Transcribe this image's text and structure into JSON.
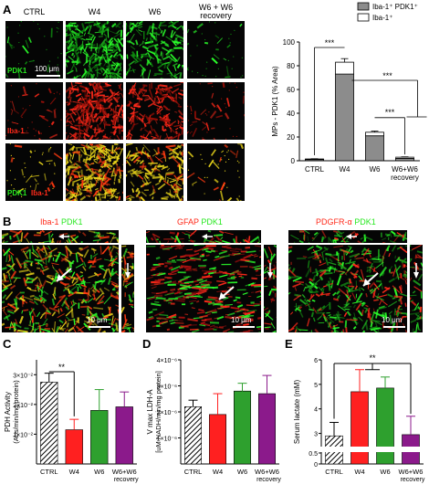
{
  "panels": {
    "A": {
      "letter": "A",
      "columns": [
        "CTRL",
        "W4",
        "W6",
        "W6 + W6"
      ],
      "column_sub": "recovery",
      "row_labels": [
        {
          "green": "PDK1",
          "red": ""
        },
        {
          "green": "",
          "red": "Iba-1"
        },
        {
          "green": "PDK1",
          "red": "Iba-1"
        }
      ],
      "scale_bar": "100 μm",
      "tile_intensity": [
        [
          0.05,
          0.9,
          0.55,
          0.06
        ],
        [
          0.08,
          0.95,
          0.6,
          0.1
        ],
        [
          0.07,
          1.0,
          0.6,
          0.08
        ]
      ]
    },
    "B": {
      "letter": "B",
      "labels": [
        {
          "red": "Iba-1",
          "green": "PDK1"
        },
        {
          "red": "GFAP",
          "green": "PDK1"
        },
        {
          "red": "PDGFR-α",
          "green": "PDK1"
        }
      ],
      "scale_bars": [
        "10 μm",
        "10 μm",
        "10 μm"
      ]
    },
    "C": {
      "letter": "C"
    },
    "D": {
      "letter": "D"
    },
    "E": {
      "letter": "E"
    }
  },
  "chart_data": [
    {
      "id": "A",
      "type": "bar",
      "stacked": true,
      "categories": [
        "CTRL",
        "W4",
        "W6",
        "W6+W6"
      ],
      "category_sub": [
        "",
        "",
        "",
        "recovery"
      ],
      "series": [
        {
          "name": "Iba-1⁺ PDK1⁺",
          "values": [
            1,
            73,
            21,
            2
          ],
          "errors": [
            0.3,
            2,
            2,
            0.4
          ],
          "color": "#8c8c8c"
        },
        {
          "name": "Iba-1⁺",
          "values": [
            0.5,
            10,
            3,
            1
          ],
          "errors": [
            0.2,
            3,
            1,
            0.3
          ],
          "color": "#ffffff"
        }
      ],
      "xlabel": "",
      "ylabel": "MPs - PDK1 (% Area)",
      "ylim": [
        0,
        100
      ],
      "yticks": [
        0,
        20,
        40,
        60,
        80,
        100
      ],
      "significance": [
        "***",
        "***",
        "***"
      ],
      "legend": "top-right"
    },
    {
      "id": "C",
      "type": "bar",
      "categories": [
        "CTRL",
        "W4",
        "W6",
        "W6+W6"
      ],
      "category_sub": [
        "",
        "",
        "",
        "recovery"
      ],
      "values": [
        0.0275,
        0.0115,
        0.018,
        0.0192
      ],
      "errors": [
        0.003,
        0.0035,
        0.007,
        0.005
      ],
      "colors": [
        "hatch",
        "#ff2020",
        "#2ea02e",
        "#8b1a8b"
      ],
      "ylabel": "PDH Activity",
      "ylabel2": "(Abs/min/mg protein)",
      "ylim": [
        0,
        0.035
      ],
      "yticks": [
        "1×10⁻²",
        "2×10⁻²",
        "3×10⁻²"
      ],
      "ytick_values": [
        0.01,
        0.02,
        0.03
      ],
      "significance": [
        "**"
      ]
    },
    {
      "id": "D",
      "type": "bar",
      "categories": [
        "CTRL",
        "W4",
        "W6",
        "W6+W6"
      ],
      "category_sub": [
        "",
        "",
        "",
        "recovery"
      ],
      "values": [
        2.2e-06,
        1.9e-06,
        2.8e-06,
        2.7e-06
      ],
      "errors": [
        2.5e-07,
        8e-07,
        3e-07,
        7e-07
      ],
      "colors": [
        "hatch",
        "#ff2020",
        "#2ea02e",
        "#8b1a8b"
      ],
      "ylabel": "V max LDH-A",
      "ylabel2": "[uM NADH/min/mg protein]",
      "ylim": [
        0,
        4e-06
      ],
      "yticks": [
        "1×10⁻⁶",
        "2×10⁻⁶",
        "3×10⁻⁶",
        "4×10⁻⁶"
      ],
      "ytick_values": [
        1e-06,
        2e-06,
        3e-06,
        4e-06
      ]
    },
    {
      "id": "E",
      "type": "bar",
      "categories": [
        "CTRL",
        "W4",
        "W6",
        "W6+W6"
      ],
      "category_sub": [
        "",
        "",
        "",
        "recovery"
      ],
      "values": [
        2.9,
        4.7,
        4.85,
        2.95
      ],
      "errors": [
        0.55,
        0.9,
        0.45,
        0.75
      ],
      "colors": [
        "hatch",
        "#ff2020",
        "#2ea02e",
        "#8b1a8b"
      ],
      "ylabel": "Serum lactate (mM)",
      "ylim": [
        0,
        6
      ],
      "yticks": [
        "0",
        "0.5",
        "3",
        "4",
        "5",
        "6"
      ],
      "axis_break": [
        0.5,
        2.5
      ],
      "significance": [
        "**"
      ]
    }
  ]
}
